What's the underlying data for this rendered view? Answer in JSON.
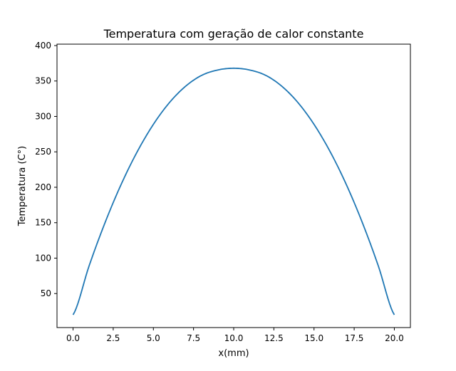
{
  "chart_data": {
    "type": "line",
    "title": "Temperatura com geração de calor constante",
    "xlabel": "x(mm)",
    "ylabel": "Temperatura (C°)",
    "xlim": [
      -1,
      21
    ],
    "ylim": [
      2,
      402
    ],
    "x_ticks": [
      0.0,
      2.5,
      5.0,
      7.5,
      10.0,
      12.5,
      15.0,
      17.5,
      20.0
    ],
    "x_tick_labels": [
      "0.0",
      "2.5",
      "5.0",
      "7.5",
      "10.0",
      "12.5",
      "15.0",
      "17.5",
      "20.0"
    ],
    "y_ticks": [
      50,
      100,
      150,
      200,
      250,
      300,
      350,
      400
    ],
    "y_tick_labels": [
      "50",
      "100",
      "150",
      "200",
      "250",
      "300",
      "350",
      "400"
    ],
    "grid": false,
    "series": [
      {
        "color": "#1f77b4",
        "x": [
          0,
          1,
          2,
          3,
          4,
          5,
          6,
          7,
          8,
          9,
          10,
          11,
          12,
          13,
          14,
          15,
          16,
          17,
          18,
          19,
          20
        ],
        "y": [
          20,
          89.2,
          150.6,
          204.4,
          250.4,
          288.8,
          319.5,
          342.5,
          357.9,
          365.5,
          368,
          365.5,
          357.9,
          342.5,
          319.5,
          288.8,
          250.4,
          204.4,
          150.6,
          89.2,
          20
        ]
      }
    ]
  }
}
